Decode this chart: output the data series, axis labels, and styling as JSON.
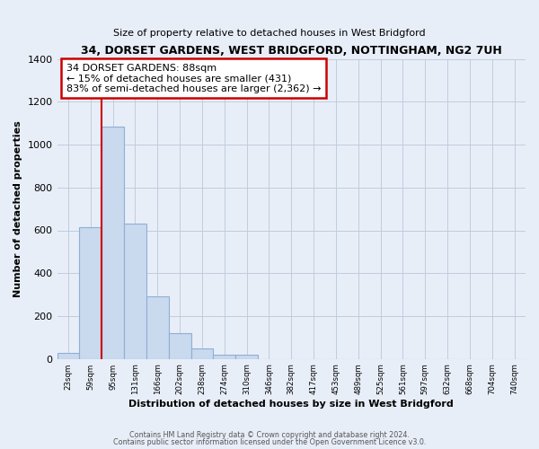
{
  "title": "34, DORSET GARDENS, WEST BRIDGFORD, NOTTINGHAM, NG2 7UH",
  "subtitle": "Size of property relative to detached houses in West Bridgford",
  "xlabel": "Distribution of detached houses by size in West Bridgford",
  "ylabel": "Number of detached properties",
  "bin_labels": [
    "23sqm",
    "59sqm",
    "95sqm",
    "131sqm",
    "166sqm",
    "202sqm",
    "238sqm",
    "274sqm",
    "310sqm",
    "346sqm",
    "382sqm",
    "417sqm",
    "453sqm",
    "489sqm",
    "525sqm",
    "561sqm",
    "597sqm",
    "632sqm",
    "668sqm",
    "704sqm",
    "740sqm"
  ],
  "bar_heights": [
    30,
    615,
    1085,
    630,
    290,
    120,
    47,
    20,
    18,
    0,
    0,
    0,
    0,
    0,
    0,
    0,
    0,
    0,
    0,
    0,
    0
  ],
  "bar_color": "#c9d9ee",
  "bar_edge_color": "#8fafd4",
  "marker_line_color": "#cc0000",
  "annotation_text": "34 DORSET GARDENS: 88sqm\n← 15% of detached houses are smaller (431)\n83% of semi-detached houses are larger (2,362) →",
  "annotation_box_edge": "#cc0000",
  "ylim": [
    0,
    1400
  ],
  "yticks": [
    0,
    200,
    400,
    600,
    800,
    1000,
    1200,
    1400
  ],
  "footer_line1": "Contains HM Land Registry data © Crown copyright and database right 2024.",
  "footer_line2": "Contains public sector information licensed under the Open Government Licence v3.0.",
  "bg_color": "#e8eef8",
  "plot_bg_color": "#e8eef8",
  "grid_color": "#c0ccdd"
}
